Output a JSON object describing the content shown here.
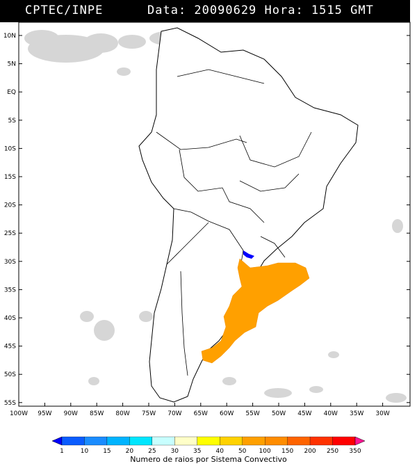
{
  "header": {
    "source": "CPTEC/INPE",
    "info": "Data: 20090629 Hora: 1515 GMT"
  },
  "lat_labels": [
    "10N",
    "5N",
    "EQ",
    "5S",
    "10S",
    "15S",
    "20S",
    "25S",
    "30S",
    "35S",
    "40S",
    "45S",
    "50S",
    "55S"
  ],
  "lon_labels": [
    "100W",
    "95W",
    "90W",
    "85W",
    "80W",
    "75W",
    "70W",
    "65W",
    "60W",
    "55W",
    "50W",
    "45W",
    "40W",
    "35W",
    "30W"
  ],
  "legend": {
    "labels": [
      "1",
      "10",
      "15",
      "20",
      "25",
      "30",
      "35",
      "40",
      "50",
      "100",
      "150",
      "200",
      "250",
      "350"
    ],
    "colors": [
      "#0000ff",
      "#0a5cff",
      "#1a8cff",
      "#00b4ff",
      "#00e6ff",
      "#c8ffff",
      "#ffffc8",
      "#ffff00",
      "#ffd200",
      "#ffa000",
      "#ff8c00",
      "#ff6400",
      "#ff3200",
      "#ff0000",
      "#ff1493"
    ],
    "caption": "Numero de raios por Sistema Convectivo"
  }
}
